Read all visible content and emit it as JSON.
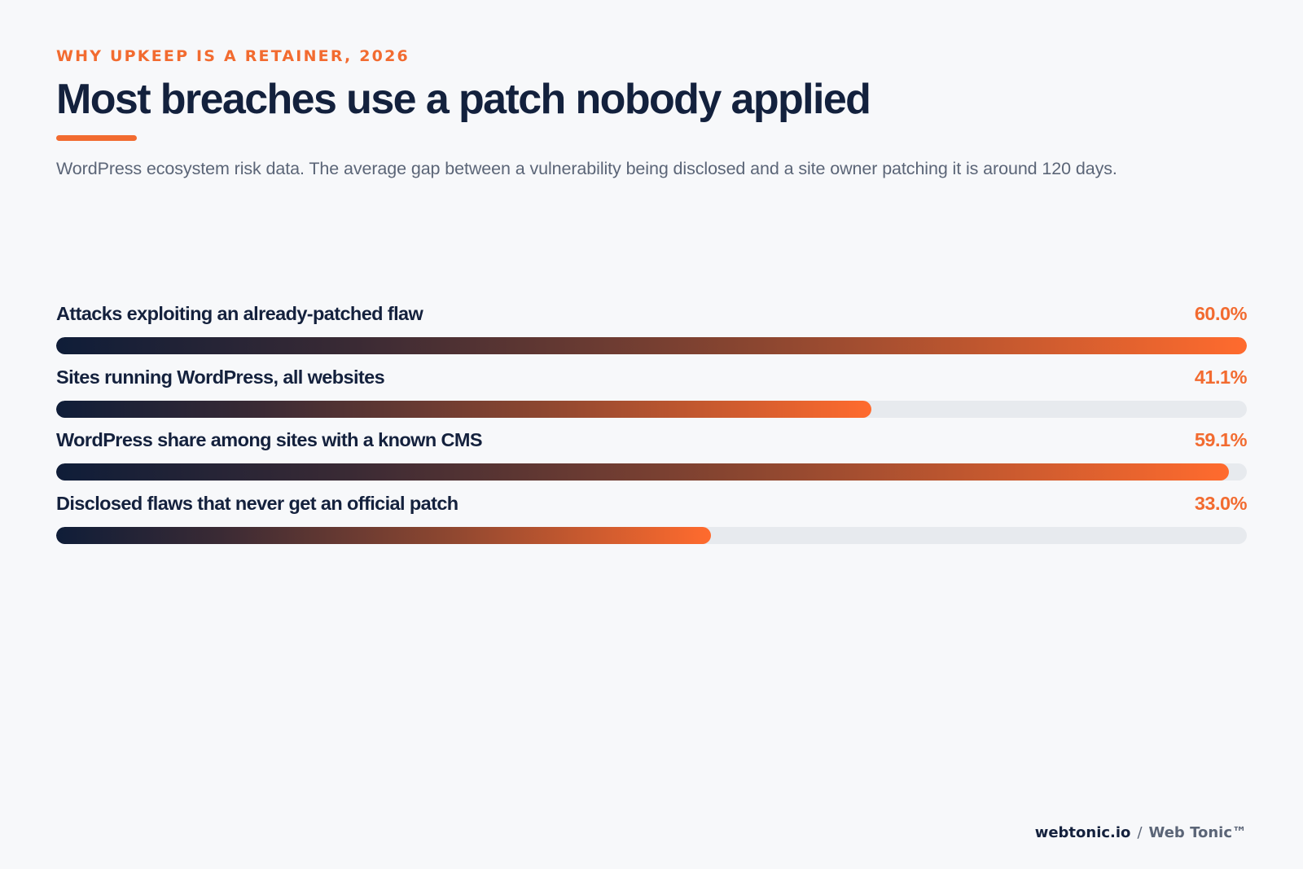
{
  "header": {
    "eyebrow": "WHY UPKEEP IS A RETAINER, 2026",
    "title": "Most breaches use a patch nobody applied",
    "subtitle": "WordPress ecosystem risk data. The average gap between a vulnerability being disclosed and a site owner patching it is around 120 days."
  },
  "chart_data": {
    "type": "bar",
    "orientation": "horizontal",
    "categories": [
      "Attacks exploiting an already-patched flaw",
      "Sites running WordPress, all websites",
      "WordPress share among sites with a known CMS",
      "Disclosed flaws that never get an official patch"
    ],
    "values": [
      60.0,
      41.1,
      59.1,
      33.0
    ],
    "value_labels": [
      "60.0%",
      "41.1%",
      "59.1%",
      "33.0%"
    ],
    "xlim": [
      0,
      60
    ],
    "title": "Most breaches use a patch nobody applied",
    "grid": false,
    "colors": {
      "bar_start": "#0f1d38",
      "bar_end": "#ff6b2e",
      "track": "#e7eaee",
      "value": "#f26b30"
    }
  },
  "footer": {
    "site": "webtonic.io",
    "separator": "/",
    "brand": "Web Tonic™"
  },
  "colors": {
    "accent": "#f26b30",
    "ink": "#14213d",
    "muted": "#5b6577",
    "background": "#f7f8fa"
  }
}
